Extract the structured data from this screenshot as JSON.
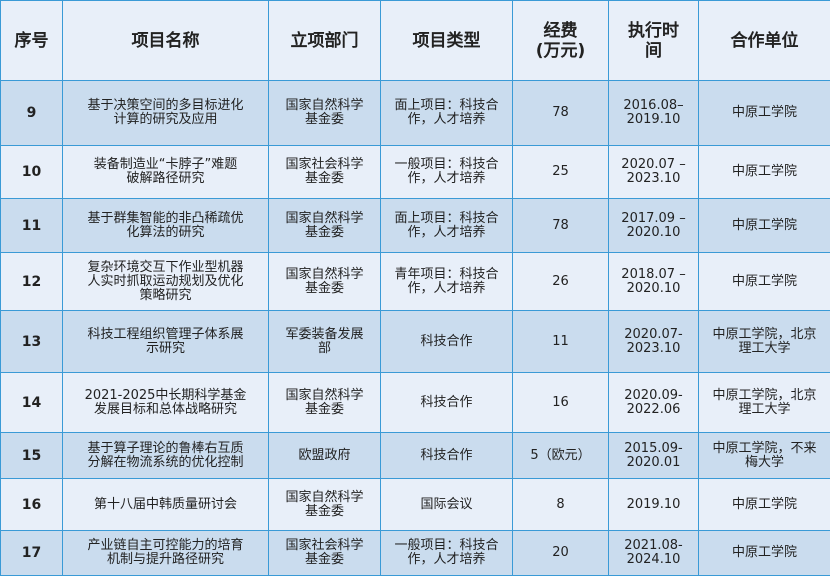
{
  "table": {
    "headers": [
      "序号",
      "项目名称",
      "立项部门",
      "项目类型",
      "经费\n(万元)",
      "执行时\n间",
      "合作单位"
    ],
    "rows": [
      [
        "9",
        "基于决策空间的多目标进化\n计算的研究及应用",
        "国家自然科学\n基金委",
        "面上项目：科技合\n作，人才培养",
        "78",
        "2016.08–\n2019.10",
        "中原工学院"
      ],
      [
        "10",
        "装备制造业“卡脖子”难题\n破解路径研究",
        "国家社会科学\n基金委",
        "一般项目：科技合\n作，人才培养",
        "25",
        "2020.07 –\n2023.10",
        "中原工学院"
      ],
      [
        "11",
        "基于群集智能的非凸稀疏优\n化算法的研究",
        "国家自然科学\n基金委",
        "面上项目：科技合\n作，人才培养",
        "78",
        "2017.09 –\n2020.10",
        "中原工学院"
      ],
      [
        "12",
        "复杂环境交互下作业型机器\n人实时抓取运动规划及优化\n策略研究",
        "国家自然科学\n基金委",
        "青年项目：科技合\n作，人才培养",
        "26",
        "2018.07 –\n2020.10",
        "中原工学院"
      ],
      [
        "13",
        "科技工程组织管理子体系展\n示研究",
        "军委装备发展\n部",
        "科技合作",
        "11",
        "2020.07-\n2023.10",
        "中原工学院，北京\n理工大学"
      ],
      [
        "14",
        "2021-2025中长期科学基金\n发展目标和总体战略研究",
        "国家自然科学\n基金委",
        "科技合作",
        "16",
        "2020.09-\n2022.06",
        "中原工学院，北京\n理工大学"
      ],
      [
        "15",
        "基于算子理论的鲁棒右互质\n分解在物流系统的优化控制",
        "欧盟政府",
        "科技合作",
        "5（欧元）",
        "2015.09-\n2020.01",
        "中原工学院，不来\n梅大学"
      ],
      [
        "16",
        "第十八届中韩质量研讨会",
        "国家自然科学\n基金委",
        "国际会议",
        "8",
        "2019.10",
        "中原工学院"
      ],
      [
        "17",
        "产业链自主可控能力的培育\n机制与提升路径研究",
        "国家社会科学\n基金委",
        "一般项目：科技合\n作，人才培养",
        "20",
        "2021.08-\n2024.10",
        "中原工学院"
      ]
    ]
  },
  "colors": {
    "border": "#3a9ad6",
    "row_light": "#e8eff9",
    "row_dark": "#cadcee"
  }
}
